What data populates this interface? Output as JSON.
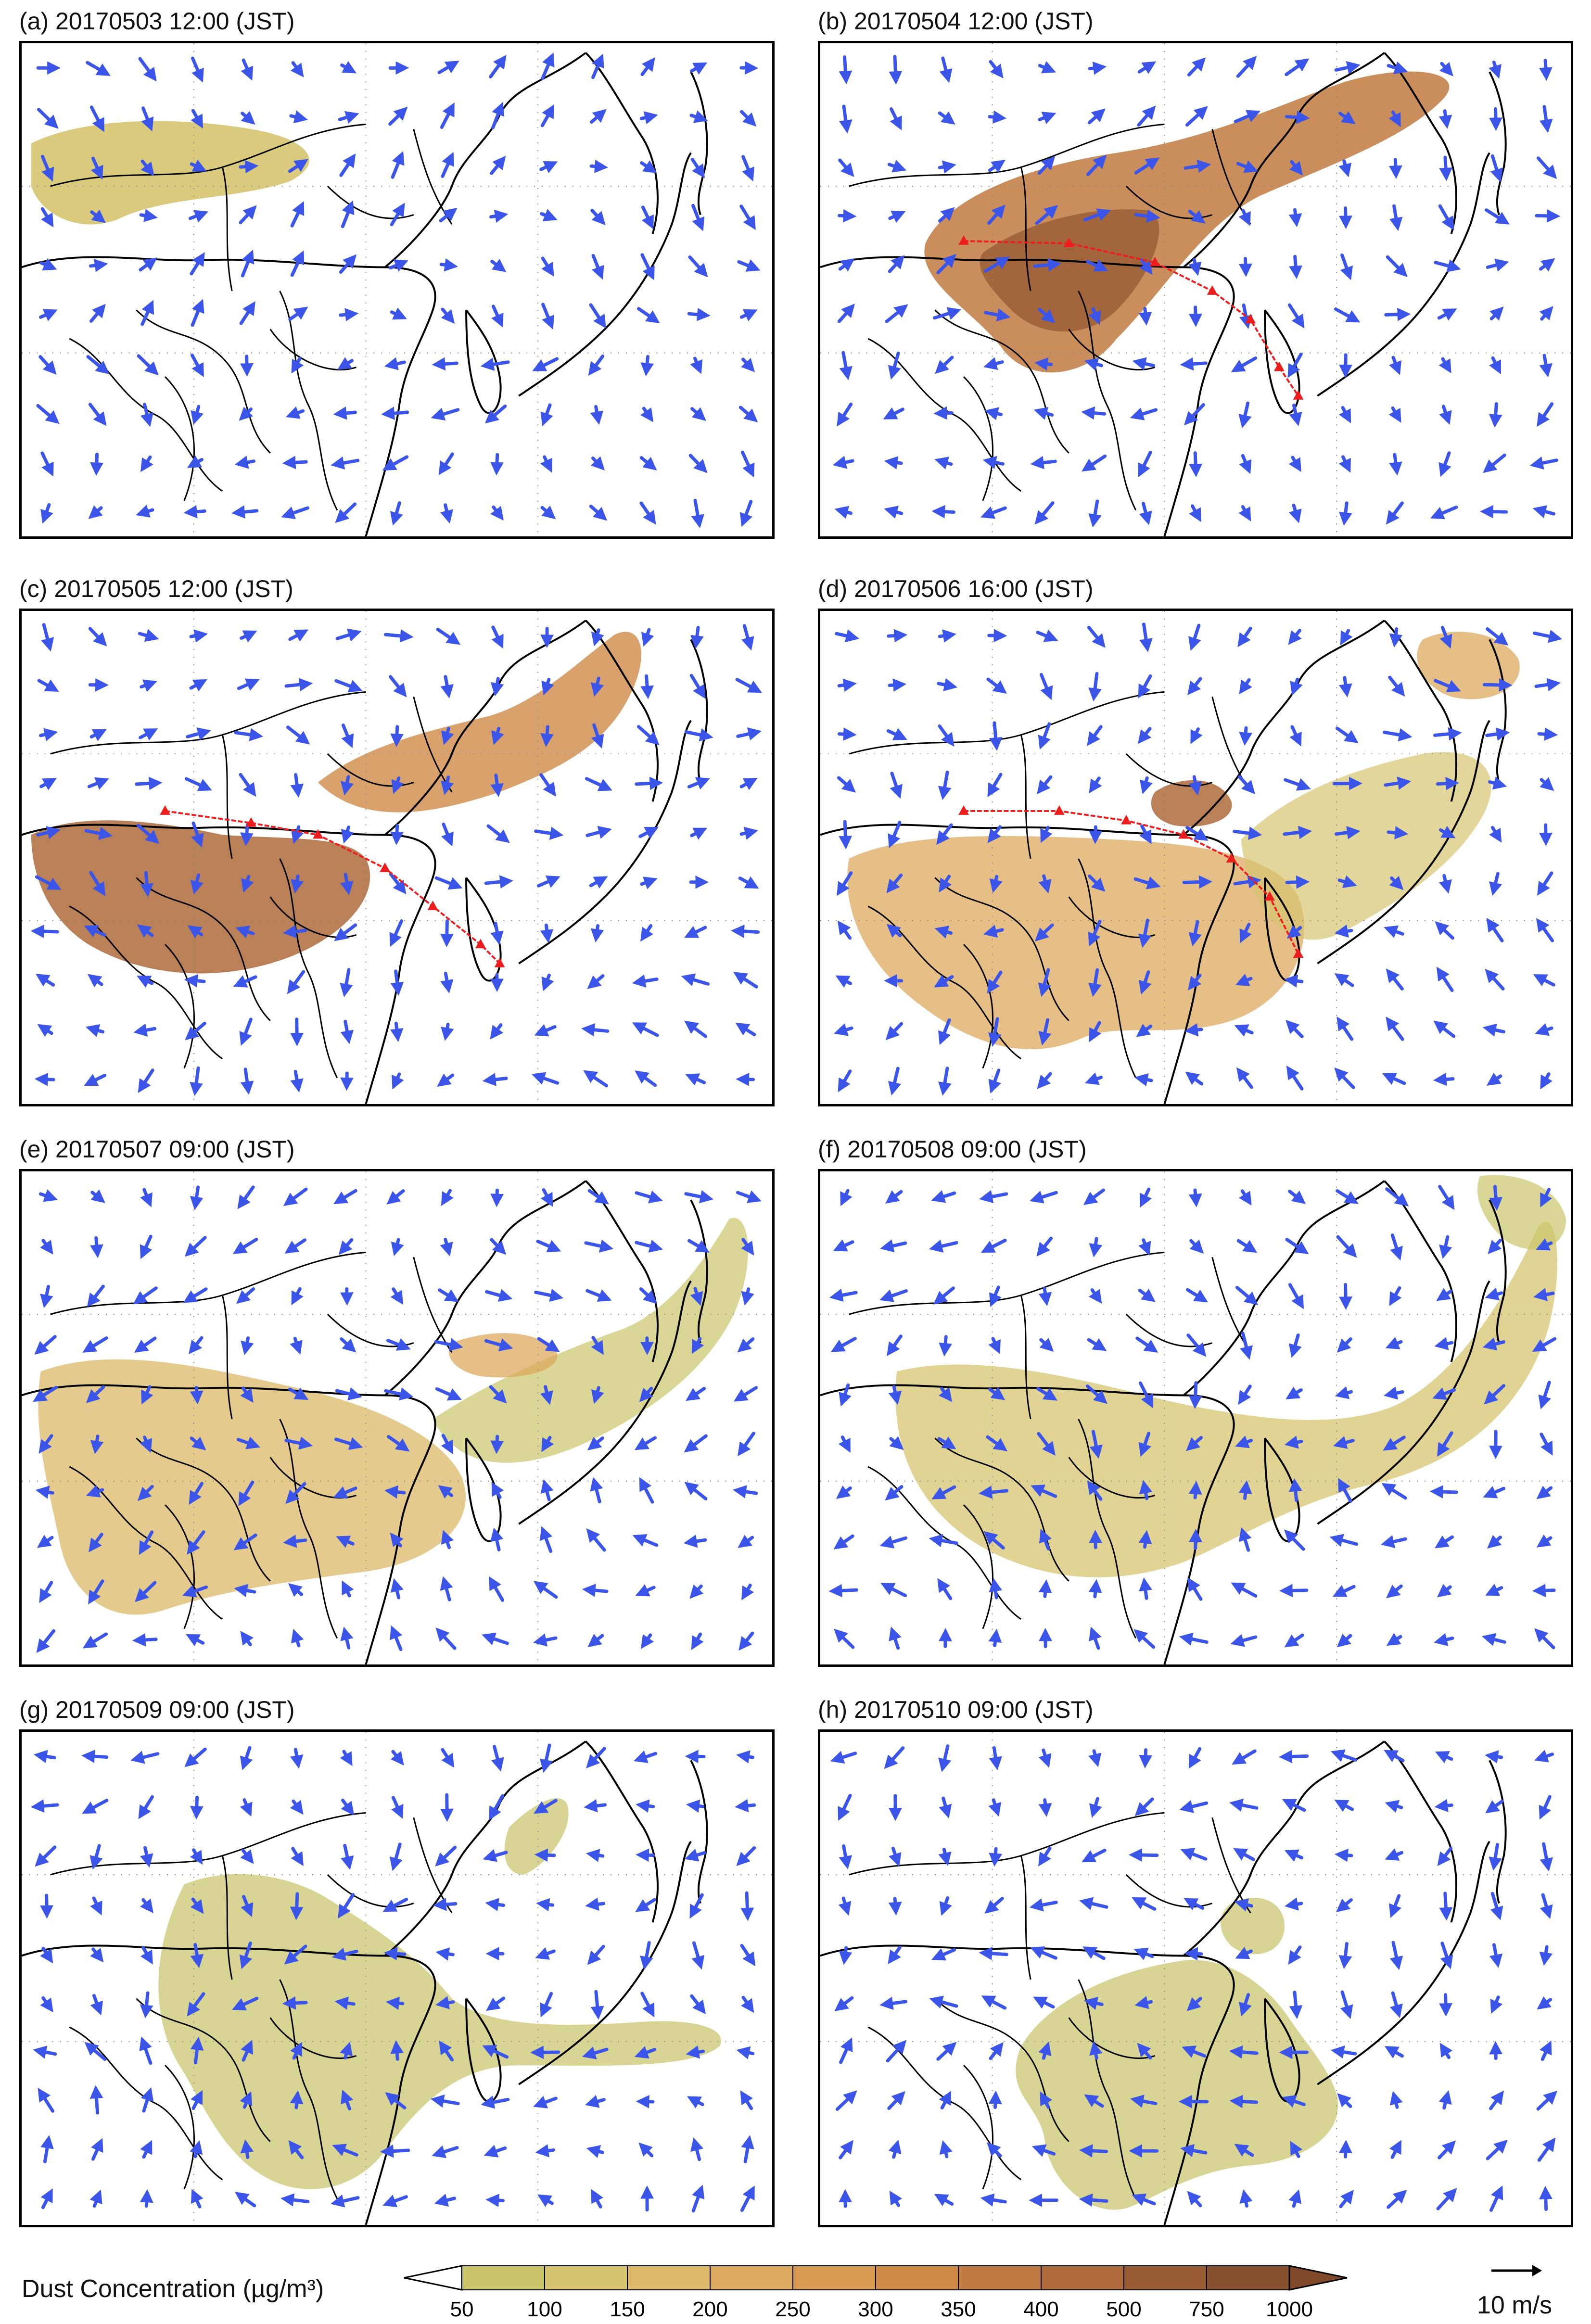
{
  "panels": [
    {
      "title": "(a) 20170503 12:00 (JST)"
    },
    {
      "title": "(b) 20170504 12:00 (JST)"
    },
    {
      "title": "(c) 20170505 12:00 (JST)"
    },
    {
      "title": "(d) 20170506 16:00 (JST)"
    },
    {
      "title": "(e) 20170507 09:00 (JST)"
    },
    {
      "title": "(f) 20170508 09:00 (JST)"
    },
    {
      "title": "(g) 20170509 09:00 (JST)"
    },
    {
      "title": "(h) 20170510 09:00 (JST)"
    }
  ],
  "colorbar": {
    "title": "Dust Concentration (µg/m³)",
    "ticks": [
      "50",
      "100",
      "150",
      "200",
      "250",
      "300",
      "350",
      "400",
      "500",
      "750",
      "1000"
    ],
    "colors": [
      "#c9c46a",
      "#d6c470",
      "#dcb868",
      "#dcaa5e",
      "#d89c52",
      "#d08a46",
      "#c07a40",
      "#ae6a3a",
      "#9a5c34",
      "#87512e"
    ]
  },
  "reference_vector": {
    "label": "10 m/s"
  },
  "colors": {
    "wind_vector": "#3a55e8",
    "trajectory": "#ee1d1d",
    "coast": "#000000"
  }
}
